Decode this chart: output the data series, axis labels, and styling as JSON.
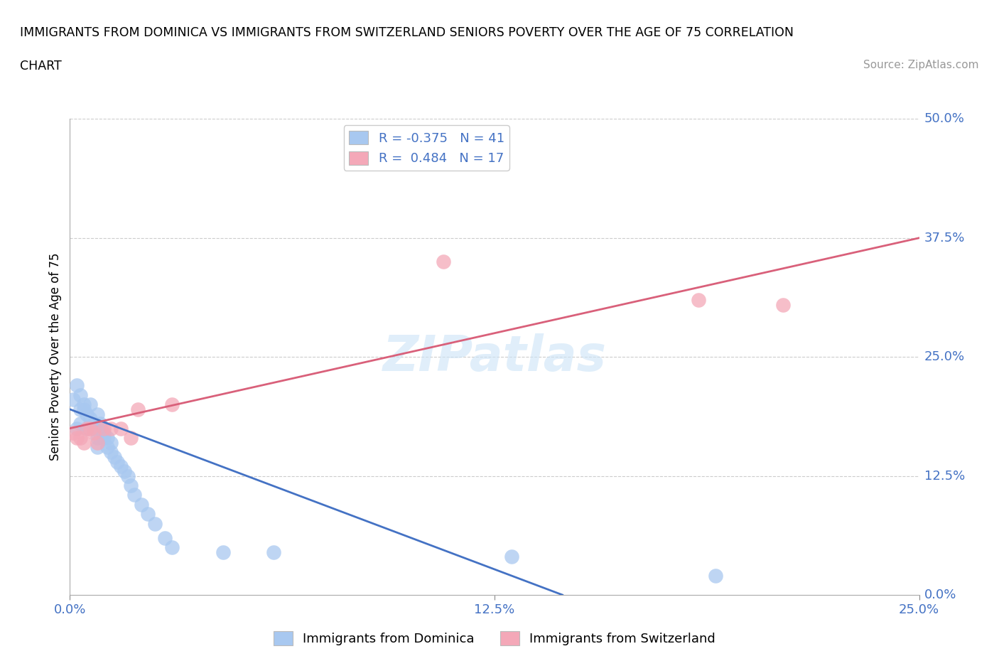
{
  "title_line1": "IMMIGRANTS FROM DOMINICA VS IMMIGRANTS FROM SWITZERLAND SENIORS POVERTY OVER THE AGE OF 75 CORRELATION",
  "title_line2": "CHART",
  "source_text": "Source: ZipAtlas.com",
  "ylabel": "Seniors Poverty Over the Age of 75",
  "watermark": "ZIPatlas",
  "dominica_color": "#a8c8f0",
  "switzerland_color": "#f4a8b8",
  "dominica_line_color": "#4472c4",
  "switzerland_line_color": "#d9607a",
  "R_dominica": -0.375,
  "N_dominica": 41,
  "R_switzerland": 0.484,
  "N_switzerland": 17,
  "xlim": [
    0,
    0.25
  ],
  "ylim": [
    0,
    0.5
  ],
  "dominica_x": [
    0.001,
    0.002,
    0.002,
    0.003,
    0.003,
    0.003,
    0.004,
    0.004,
    0.005,
    0.005,
    0.006,
    0.006,
    0.007,
    0.007,
    0.008,
    0.008,
    0.008,
    0.009,
    0.009,
    0.01,
    0.01,
    0.011,
    0.011,
    0.012,
    0.012,
    0.013,
    0.014,
    0.015,
    0.016,
    0.017,
    0.018,
    0.019,
    0.021,
    0.023,
    0.025,
    0.028,
    0.03,
    0.045,
    0.06,
    0.13,
    0.19
  ],
  "dominica_y": [
    0.205,
    0.175,
    0.22,
    0.195,
    0.21,
    0.18,
    0.195,
    0.2,
    0.19,
    0.175,
    0.185,
    0.2,
    0.18,
    0.175,
    0.19,
    0.165,
    0.155,
    0.175,
    0.18,
    0.165,
    0.17,
    0.165,
    0.155,
    0.15,
    0.16,
    0.145,
    0.14,
    0.135,
    0.13,
    0.125,
    0.115,
    0.105,
    0.095,
    0.085,
    0.075,
    0.06,
    0.05,
    0.045,
    0.045,
    0.04,
    0.02
  ],
  "switzerland_x": [
    0.001,
    0.002,
    0.003,
    0.004,
    0.005,
    0.006,
    0.007,
    0.008,
    0.01,
    0.012,
    0.015,
    0.018,
    0.02,
    0.03,
    0.11,
    0.185,
    0.21
  ],
  "switzerland_y": [
    0.17,
    0.165,
    0.165,
    0.16,
    0.175,
    0.175,
    0.17,
    0.16,
    0.175,
    0.175,
    0.175,
    0.165,
    0.195,
    0.2,
    0.35,
    0.31,
    0.305
  ],
  "dom_line_x": [
    0.0,
    0.145
  ],
  "dom_line_y": [
    0.195,
    0.0
  ],
  "switz_line_x": [
    0.0,
    0.25
  ],
  "switz_line_y": [
    0.175,
    0.375
  ]
}
